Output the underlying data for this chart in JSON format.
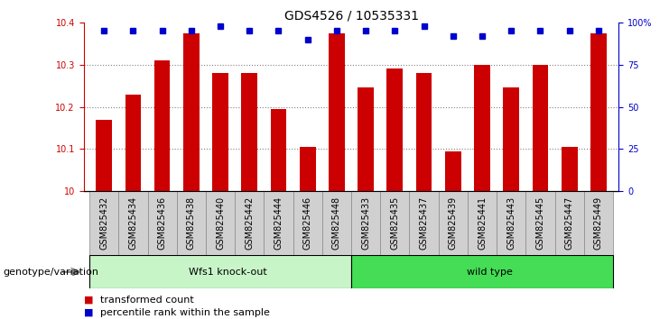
{
  "title": "GDS4526 / 10535331",
  "samples": [
    "GSM825432",
    "GSM825434",
    "GSM825436",
    "GSM825438",
    "GSM825440",
    "GSM825442",
    "GSM825444",
    "GSM825446",
    "GSM825448",
    "GSM825433",
    "GSM825435",
    "GSM825437",
    "GSM825439",
    "GSM825441",
    "GSM825443",
    "GSM825445",
    "GSM825447",
    "GSM825449"
  ],
  "bar_values": [
    10.17,
    10.23,
    10.31,
    10.375,
    10.28,
    10.28,
    10.195,
    10.105,
    10.375,
    10.245,
    10.29,
    10.28,
    10.095,
    10.3,
    10.245,
    10.3,
    10.105,
    10.375
  ],
  "percentile_values": [
    95,
    95,
    95,
    95,
    98,
    95,
    95,
    90,
    95,
    95,
    95,
    98,
    92,
    92,
    95,
    95,
    95,
    95
  ],
  "group_labels": [
    "Wfs1 knock-out",
    "wild type"
  ],
  "group_split": 9,
  "group_color_left": "#c8f5c8",
  "group_color_right": "#44dd55",
  "ylim": [
    10.0,
    10.4
  ],
  "y_ticks": [
    10.0,
    10.1,
    10.2,
    10.3,
    10.4
  ],
  "y_tick_labels": [
    "10",
    "10.1",
    "10.2",
    "10.3",
    "10.4"
  ],
  "y2_ticks": [
    0,
    25,
    50,
    75,
    100
  ],
  "y2_tick_labels": [
    "0",
    "25",
    "50",
    "75",
    "100%"
  ],
  "bar_color": "#cc0000",
  "dot_color": "#0000cc",
  "tick_bg_color": "#d0d0d0",
  "tick_border_color": "#888888",
  "legend_bar_label": "transformed count",
  "legend_dot_label": "percentile rank within the sample",
  "genotype_label": "genotype/variation",
  "title_fontsize": 10,
  "tick_fontsize": 7,
  "label_fontsize": 8,
  "grid_color": "#555555",
  "spine_color_left": "#cc0000",
  "spine_color_right": "#0000cc"
}
